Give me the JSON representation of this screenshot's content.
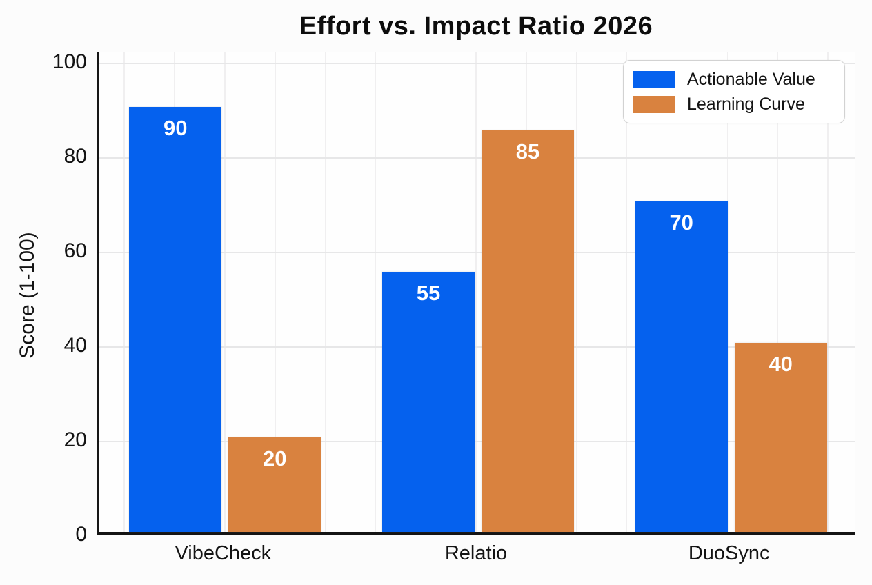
{
  "chart_data": {
    "type": "bar",
    "title": "Effort vs. Impact Ratio 2026",
    "ylabel": "Score (1-100)",
    "xlabel": "",
    "categories": [
      "VibeCheck",
      "Relatio",
      "DuoSync"
    ],
    "series": [
      {
        "name": "Actionable Value",
        "color": "#0561ee",
        "values": [
          90,
          55,
          70
        ]
      },
      {
        "name": "Learning Curve",
        "color": "#d9823f",
        "values": [
          20,
          85,
          40
        ]
      }
    ],
    "ylim": [
      0,
      100
    ],
    "yticks": [
      0,
      20,
      40,
      60,
      80,
      100
    ],
    "grid": true,
    "legend_position": "upper-right",
    "value_labels": "inside-top",
    "value_label_color": "#ffffff",
    "text_color": "#141414",
    "axis_color": "#161616",
    "hgrid_color": "#e7e7e8",
    "vgrid_color": "#f0eff0",
    "plot_background": "#fefefe",
    "page_background": "#fcfcfc"
  }
}
